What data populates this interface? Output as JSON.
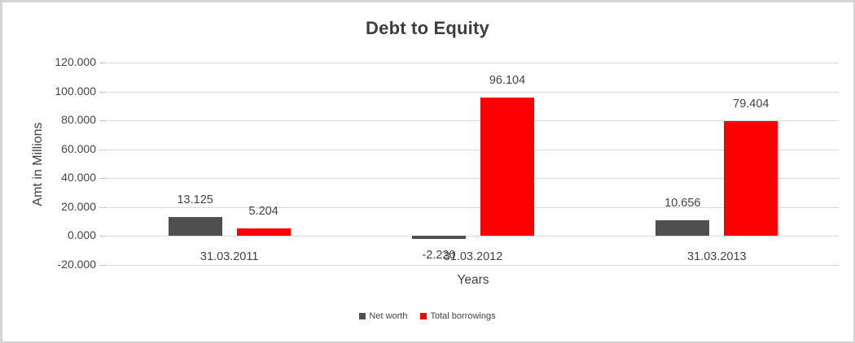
{
  "chart_data": {
    "type": "bar",
    "title": "Debt to Equity",
    "xlabel": "Years",
    "ylabel": "Amt in Millions",
    "categories": [
      "31.03.2011",
      "31.03.2012",
      "31.03.2013"
    ],
    "series": [
      {
        "name": "Net worth",
        "color": "#4f4f4f",
        "values": [
          13.125,
          -2.22,
          10.656
        ],
        "labels": [
          "13.125",
          "-2.220",
          "10.656"
        ]
      },
      {
        "name": "Total borrowings",
        "color": "#ff0000",
        "values": [
          5.204,
          96.104,
          79.404
        ],
        "labels": [
          "5.204",
          "96.104",
          "79.404"
        ]
      }
    ],
    "y_axis": {
      "min": -20,
      "max": 120,
      "step": 20,
      "tick_labels": [
        "120.000",
        "100.000",
        "80.000",
        "60.000",
        "40.000",
        "20.000",
        "0.000",
        "-20.000"
      ]
    },
    "grid": true,
    "legend_position": "bottom",
    "colors": {
      "text": "#404040",
      "gridline": "#d9d9d9",
      "frame_border": "#d4d4d4",
      "background": "#ffffff"
    }
  }
}
